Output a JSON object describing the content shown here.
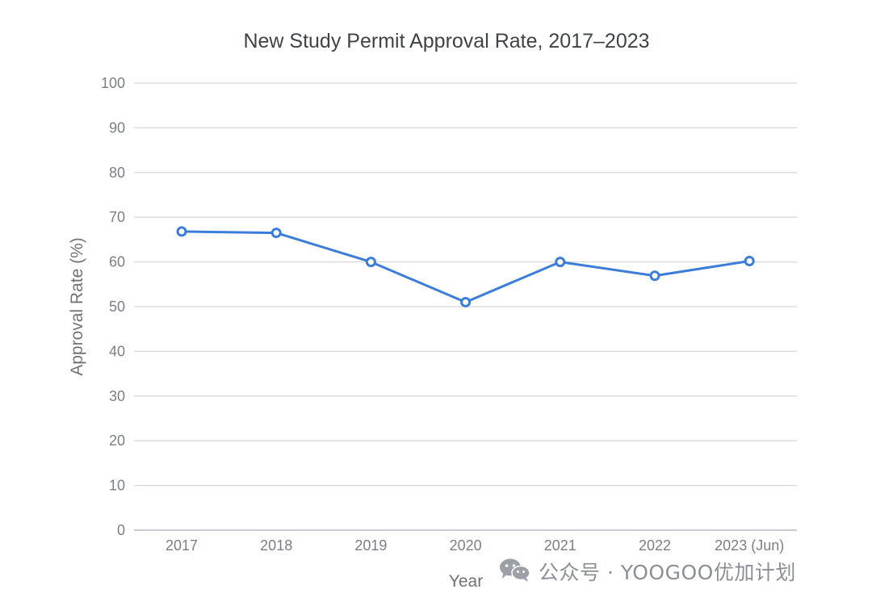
{
  "chart_data": {
    "type": "line",
    "title": "New Study Permit Approval Rate, 2017–2023",
    "xlabel": "Year",
    "ylabel": "Approval Rate (%)",
    "categories": [
      "2017",
      "2018",
      "2019",
      "2020",
      "2021",
      "2022",
      "2023 (Jun)"
    ],
    "series": [
      {
        "values": [
          66.8,
          66.5,
          60,
          51,
          60,
          56.9,
          60.2
        ]
      }
    ],
    "ylim": [
      0,
      100
    ],
    "yticks": [
      0,
      10,
      20,
      30,
      40,
      50,
      60,
      70,
      80,
      90,
      100
    ],
    "grid": true,
    "line_color": "#3b7dd8",
    "marker": "hollow-circle"
  },
  "watermark": {
    "icon": "wechat-icon",
    "text": "公众号 · YOOGOO优加计划"
  }
}
